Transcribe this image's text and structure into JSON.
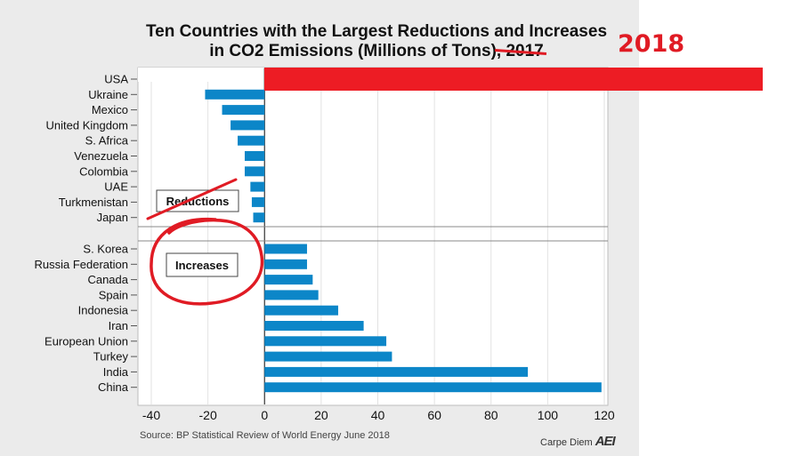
{
  "title": {
    "line1": "Ten Countries with the Largest Reductions and Increases",
    "line2_prefix": "in CO2 Emissions (Millions of Tons), ",
    "struck_year": "2017",
    "overlay_year": "2018"
  },
  "annotations": {
    "reductions_label": "Reductions",
    "increases_label": "Increases"
  },
  "source": "Source: BP Statistical Review of World Energy June 2018",
  "branding": {
    "text": "Carpe Diem",
    "logo": "AEI"
  },
  "colors": {
    "bar": "#0c86c8",
    "usa_bar": "#ed1c24",
    "markup": "#e01b24"
  },
  "chart_data": {
    "type": "bar",
    "orientation": "horizontal",
    "xlim": [
      -40,
      120
    ],
    "xticks": [
      -40,
      -20,
      0,
      20,
      40,
      60,
      80,
      100,
      120
    ],
    "grid": "vertical",
    "reductions": [
      {
        "country": "USA",
        "value": null
      },
      {
        "country": "Ukraine",
        "value": -21
      },
      {
        "country": "Mexico",
        "value": -15
      },
      {
        "country": "United Kingdom",
        "value": -12
      },
      {
        "country": "S. Africa",
        "value": -9.5
      },
      {
        "country": "Venezuela",
        "value": -7
      },
      {
        "country": "Colombia",
        "value": -7
      },
      {
        "country": "UAE",
        "value": -5
      },
      {
        "country": "Turkmenistan",
        "value": -4.5
      },
      {
        "country": "Japan",
        "value": -4
      }
    ],
    "increases": [
      {
        "country": "S. Korea",
        "value": 15
      },
      {
        "country": "Russia Federation",
        "value": 15
      },
      {
        "country": "Canada",
        "value": 17
      },
      {
        "country": "Spain",
        "value": 19
      },
      {
        "country": "Indonesia",
        "value": 26
      },
      {
        "country": "Iran",
        "value": 35
      },
      {
        "country": "European Union",
        "value": 43
      },
      {
        "country": "Turkey",
        "value": 45
      },
      {
        "country": "India",
        "value": 93
      },
      {
        "country": "China",
        "value": 119
      }
    ]
  }
}
